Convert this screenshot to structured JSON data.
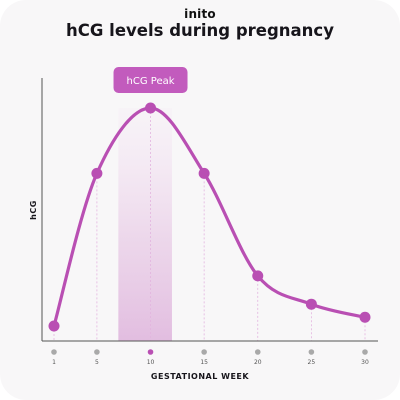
{
  "brand": "inito",
  "title": "hCG levels during pregnancy",
  "chart_data": {
    "type": "line",
    "title": "hCG levels during pregnancy",
    "xlabel": "GESTATIONAL WEEK",
    "ylabel": "hCG",
    "xlim": [
      1,
      30
    ],
    "ylim": [
      0,
      100
    ],
    "x_ticks": [
      1,
      5,
      10,
      15,
      20,
      25,
      30
    ],
    "highlight_tick": 10,
    "series": [
      {
        "x": [
          1,
          5,
          10,
          15,
          20,
          25,
          30
        ],
        "y": [
          0,
          70,
          100,
          70,
          23,
          10,
          4
        ]
      }
    ],
    "annotation": {
      "label": "hCG Peak",
      "x": 10,
      "band": [
        7,
        12
      ]
    },
    "grid": false,
    "colors": {
      "line": "#b94fb3",
      "point": "#b94fb3",
      "band": "#e8c3e6",
      "label_bg": "#c25bbd",
      "axis": "#555555",
      "tick_dot": "#a9a9a9",
      "guide": "#e3b4df"
    }
  }
}
